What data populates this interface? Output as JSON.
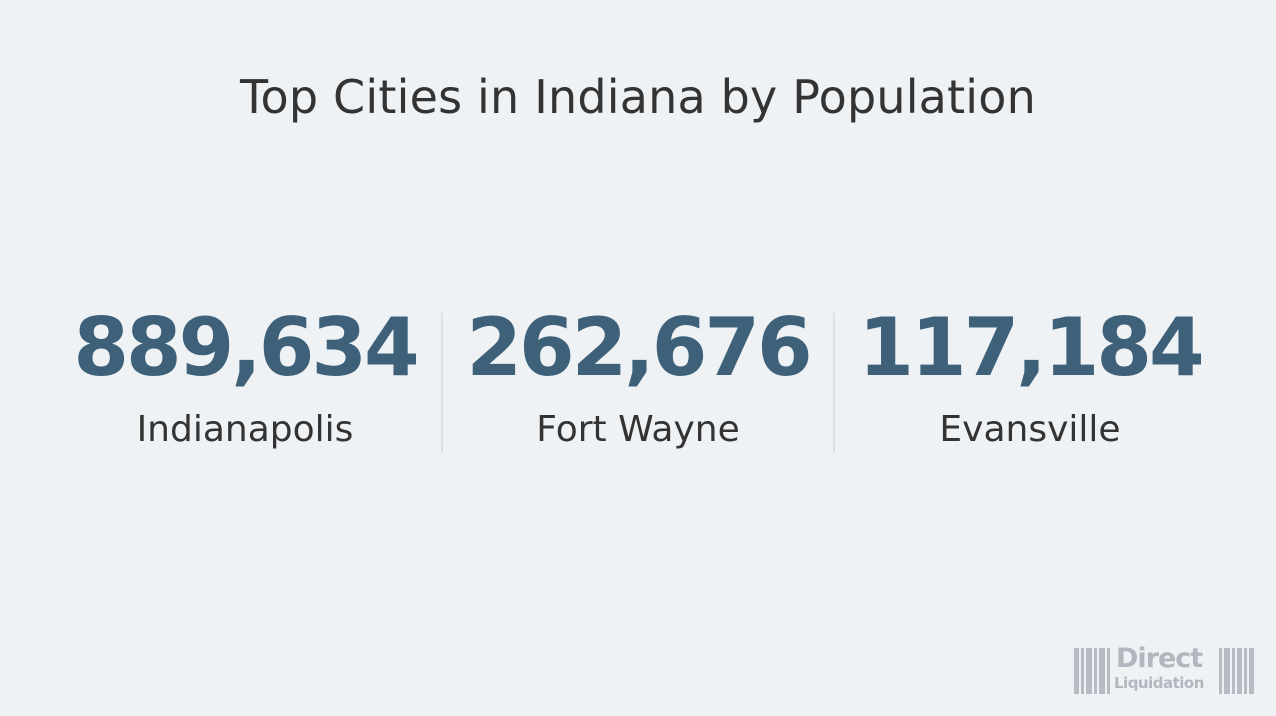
{
  "title": "Top Cities in Indiana by Population",
  "stats": [
    {
      "value": "889,634",
      "label": "Indianapolis"
    },
    {
      "value": "262,676",
      "label": "Fort Wayne"
    },
    {
      "value": "117,184",
      "label": "Evansville"
    }
  ],
  "logo": {
    "line1": "Direct",
    "line2": "Liquidation"
  },
  "colors": {
    "background": "#eff2f5",
    "value": "#3e6179",
    "text": "#333333",
    "divider": "#dbe0e5",
    "logo": "#b0b7be"
  }
}
